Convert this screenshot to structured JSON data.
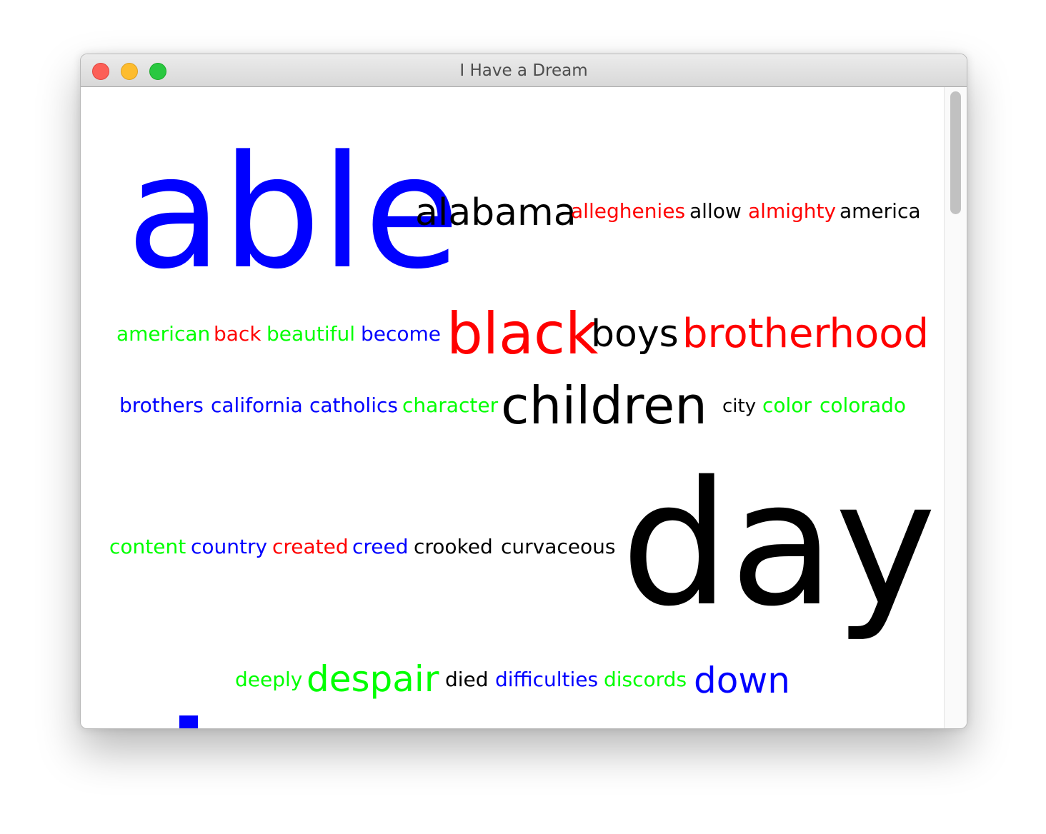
{
  "window": {
    "title": "I Have a Dream"
  },
  "cloud": {
    "colors": {
      "blue": "#0000ff",
      "red": "#ff0000",
      "green": "#00ff00",
      "black": "#000000"
    },
    "words": [
      {
        "text": "able",
        "color": "blue"
      },
      {
        "text": "alabama",
        "color": "black"
      },
      {
        "text": "alleghenies",
        "color": "red"
      },
      {
        "text": "allow",
        "color": "black"
      },
      {
        "text": "almighty",
        "color": "red"
      },
      {
        "text": "america",
        "color": "black"
      },
      {
        "text": "american",
        "color": "green"
      },
      {
        "text": "back",
        "color": "red"
      },
      {
        "text": "beautiful",
        "color": "green"
      },
      {
        "text": "become",
        "color": "blue"
      },
      {
        "text": "black",
        "color": "red"
      },
      {
        "text": "boys",
        "color": "black"
      },
      {
        "text": "brotherhood",
        "color": "red"
      },
      {
        "text": "brothers",
        "color": "blue"
      },
      {
        "text": "california",
        "color": "blue"
      },
      {
        "text": "catholics",
        "color": "blue"
      },
      {
        "text": "character",
        "color": "green"
      },
      {
        "text": "children",
        "color": "black"
      },
      {
        "text": "city",
        "color": "black"
      },
      {
        "text": "color",
        "color": "green"
      },
      {
        "text": "colorado",
        "color": "green"
      },
      {
        "text": "content",
        "color": "green"
      },
      {
        "text": "country",
        "color": "blue"
      },
      {
        "text": "created",
        "color": "red"
      },
      {
        "text": "creed",
        "color": "blue"
      },
      {
        "text": "crooked",
        "color": "black"
      },
      {
        "text": "curvaceous",
        "color": "black"
      },
      {
        "text": "day",
        "color": "black"
      },
      {
        "text": "deeply",
        "color": "green"
      },
      {
        "text": "despair",
        "color": "green"
      },
      {
        "text": "died",
        "color": "black"
      },
      {
        "text": "difficulties",
        "color": "blue"
      },
      {
        "text": "discords",
        "color": "green"
      },
      {
        "text": "down",
        "color": "blue"
      }
    ]
  }
}
